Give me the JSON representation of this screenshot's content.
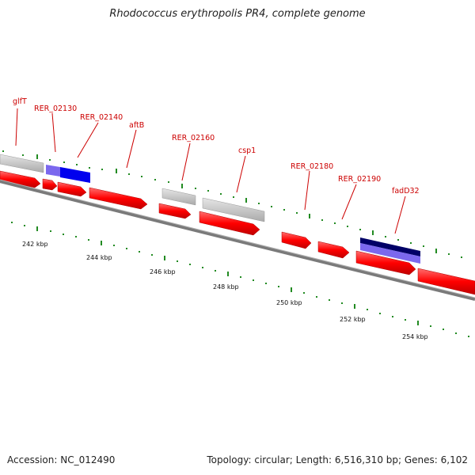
{
  "title": "Rhodococcus erythropolis PR4, complete genome",
  "footer": {
    "accession": "Accession: NC_012490",
    "summary": "Topology: circular; Length: 6,516,310 bp; Genes: 6,102"
  },
  "gene_labels": [
    "glfT",
    "RER_02130",
    "RER_02140",
    "aftB",
    "RER_02160",
    "csp1",
    "RER_02180",
    "RER_02190",
    "fadD32"
  ],
  "scale_labels": [
    "242 kbp",
    "244 kbp",
    "246 kbp",
    "248 kbp",
    "250 kbp",
    "252 kbp",
    "254 kbp"
  ],
  "colors": {
    "cds": "#ff0000",
    "gene": "#c8c8c8",
    "highlight": "#0000ee",
    "highlight_dark": "#000066",
    "highlight_light": "#7b68ee",
    "tick": "#228b22",
    "backbone": "#7a7a7a"
  }
}
